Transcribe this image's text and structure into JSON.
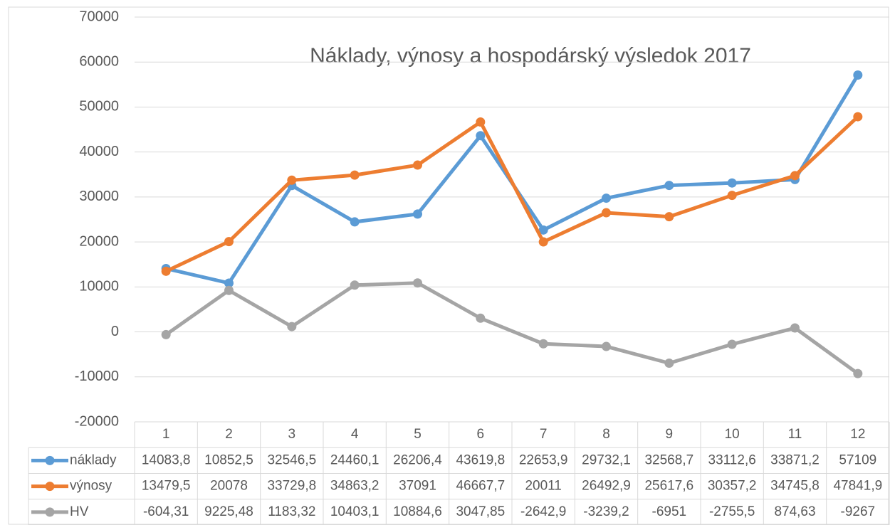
{
  "chart_data": {
    "type": "line",
    "title": "Náklady, výnosy a hospodárský výsledok 2017",
    "categories": [
      "1",
      "2",
      "3",
      "4",
      "5",
      "6",
      "7",
      "8",
      "9",
      "10",
      "11",
      "12"
    ],
    "ylim": [
      -20000,
      70000
    ],
    "yticks": [
      -20000,
      -10000,
      0,
      10000,
      20000,
      30000,
      40000,
      50000,
      60000,
      70000
    ],
    "grid": true,
    "series": [
      {
        "name": "náklady",
        "color": "#5b9bd5",
        "values": [
          14083.8,
          10852.5,
          32546.5,
          24460.1,
          26206.4,
          43619.8,
          22653.9,
          29732.1,
          32568.7,
          33112.6,
          33871.2,
          57109
        ],
        "value_labels": [
          "14083,8",
          "10852,5",
          "32546,5",
          "24460,1",
          "26206,4",
          "43619,8",
          "22653,9",
          "29732,1",
          "32568,7",
          "33112,6",
          "33871,2",
          "57109"
        ]
      },
      {
        "name": "výnosy",
        "color": "#ed7d31",
        "values": [
          13479.5,
          20078,
          33729.8,
          34863.2,
          37091,
          46667.7,
          20011,
          26492.9,
          25617.6,
          30357.2,
          34745.8,
          47841.9
        ],
        "value_labels": [
          "13479,5",
          "20078",
          "33729,8",
          "34863,2",
          "37091",
          "46667,7",
          "20011",
          "26492,9",
          "25617,6",
          "30357,2",
          "34745,8",
          "47841,9"
        ]
      },
      {
        "name": "HV",
        "color": "#a5a5a5",
        "values": [
          -604.31,
          9225.48,
          1183.32,
          10403.1,
          10884.6,
          3047.85,
          -2642.9,
          -3239.2,
          -6951,
          -2755.5,
          874.63,
          -9267
        ],
        "value_labels": [
          "-604,31",
          "9225,48",
          "1183,32",
          "10403,1",
          "10884,6",
          "3047,85",
          "-2642,9",
          "-3239,2",
          "-6951",
          "-2755,5",
          "874,63",
          "-9267"
        ]
      }
    ]
  }
}
